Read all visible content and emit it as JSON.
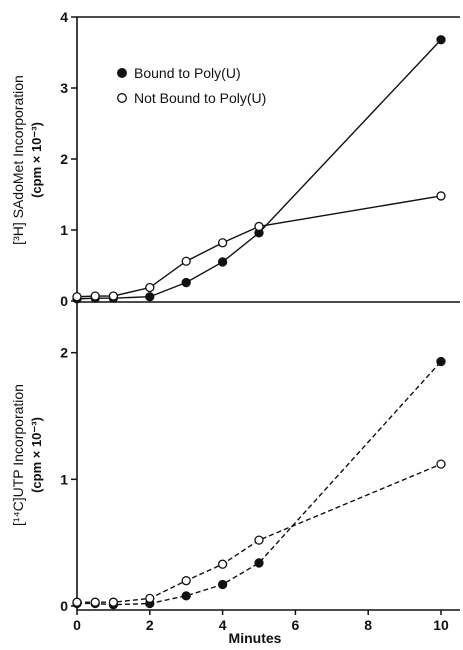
{
  "chart_data": [
    {
      "type": "line",
      "panel": "top",
      "ylabel": "[³H] SAdoMet Incorporation",
      "ylabel_units": "(cpm × 10⁻³)",
      "ylim": [
        0,
        4
      ],
      "yticks": [
        0,
        1,
        2,
        3,
        4
      ],
      "xlim": [
        0,
        10.3
      ],
      "grid": false,
      "legend_position": "top-left",
      "series": [
        {
          "name": "Bound to Poly(U)",
          "marker": "filled-circle",
          "line": "solid",
          "x": [
            0,
            0.5,
            1,
            2,
            3,
            4,
            5,
            10
          ],
          "y": [
            0.03,
            0.04,
            0.04,
            0.06,
            0.26,
            0.55,
            0.96,
            3.68
          ]
        },
        {
          "name": "Not Bound to Poly(U)",
          "marker": "open-circle",
          "line": "solid",
          "x": [
            0,
            0.5,
            1,
            2,
            3,
            4,
            5,
            10
          ],
          "y": [
            0.06,
            0.07,
            0.07,
            0.19,
            0.56,
            0.82,
            1.05,
            1.48
          ]
        }
      ]
    },
    {
      "type": "line",
      "panel": "bottom",
      "ylabel": "[¹⁴C]UTP Incorporation",
      "ylabel_units": "(cpm × 10⁻³)",
      "xlabel": "Minutes",
      "ylim": [
        0,
        2.4
      ],
      "yticks": [
        0,
        1,
        2
      ],
      "xlim": [
        0,
        10.3
      ],
      "xticks": [
        0,
        2,
        4,
        6,
        8,
        10
      ],
      "grid": false,
      "series": [
        {
          "name": "Bound to Poly(U)",
          "marker": "filled-circle",
          "line": "dashed",
          "x": [
            0,
            0.5,
            1,
            2,
            3,
            4,
            5,
            10
          ],
          "y": [
            0.02,
            0.02,
            0.01,
            0.02,
            0.08,
            0.17,
            0.34,
            1.93
          ]
        },
        {
          "name": "Not Bound to Poly(U)",
          "marker": "open-circle",
          "line": "dashed",
          "x": [
            0,
            0.5,
            1,
            2,
            3,
            4,
            5,
            10
          ],
          "y": [
            0.03,
            0.03,
            0.03,
            0.06,
            0.2,
            0.33,
            0.52,
            1.12
          ]
        }
      ]
    }
  ]
}
